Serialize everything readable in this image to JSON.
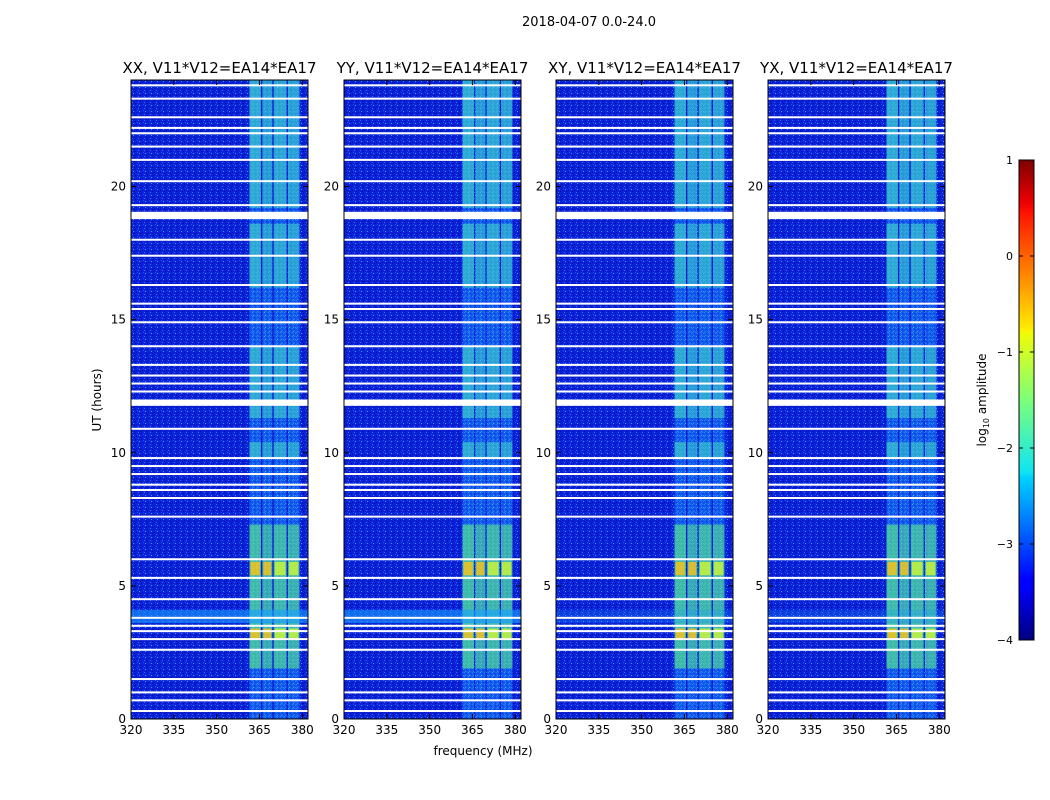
{
  "figure": {
    "suptitle": "2018-04-07 0.0-24.0",
    "xlabel": "frequency (MHz)",
    "ylabel": "UT (hours)"
  },
  "chart_data": {
    "type": "heatmap",
    "x_ticks": [
      320,
      335,
      350,
      365,
      380
    ],
    "y_ticks": [
      0,
      5,
      10,
      15,
      20
    ],
    "xlim": [
      320,
      382
    ],
    "ylim": [
      0,
      24
    ],
    "colorscale": "jet",
    "panels": [
      {
        "title": "XX, V11*V12=EA14*EA17",
        "product": "XX"
      },
      {
        "title": "YY, V11*V12=EA14*EA17",
        "product": "YY"
      },
      {
        "title": "XY, V11*V12=EA14*EA17",
        "product": "XY"
      },
      {
        "title": "YX, V11*V12=EA14*EA17",
        "product": "YX"
      }
    ],
    "freq_bands_mhz": [
      [
        361.5,
        365.5
      ],
      [
        366,
        369.5
      ],
      [
        370,
        374.5
      ],
      [
        375,
        379
      ]
    ],
    "strong_time_ranges_hours": [
      [
        1.9,
        7.3
      ],
      [
        9.8,
        10.4
      ],
      [
        11.3,
        14.0
      ],
      [
        16.2,
        18.6
      ],
      [
        19.2,
        24
      ]
    ],
    "flagged_rows_hours": [
      0.3,
      0.7,
      1.0,
      1.5,
      2.6,
      3.0,
      3.3,
      3.5,
      3.8,
      4.5,
      5.3,
      6.0,
      7.6,
      8.3,
      8.6,
      8.8,
      9.2,
      9.5,
      9.8,
      10.9,
      11.8,
      11.9,
      12.3,
      12.6,
      12.9,
      13.3,
      14.0,
      14.9,
      15.4,
      15.6,
      16.3,
      17.4,
      18.0,
      18.9,
      19.0,
      19.3,
      20.2,
      21.0,
      21.5,
      22.0,
      22.2,
      22.6,
      23.3,
      23.8
    ],
    "colorbar": {
      "label": "log10 amplitude",
      "label_base": "log",
      "label_sub": "10",
      "label_rest": " amplitude",
      "min": -4,
      "max": 1,
      "ticks": [
        1,
        0,
        -1,
        -2,
        -3,
        -4
      ],
      "tick_labels": [
        "1",
        "0",
        "−1",
        "−2",
        "−3",
        "−4"
      ]
    }
  }
}
